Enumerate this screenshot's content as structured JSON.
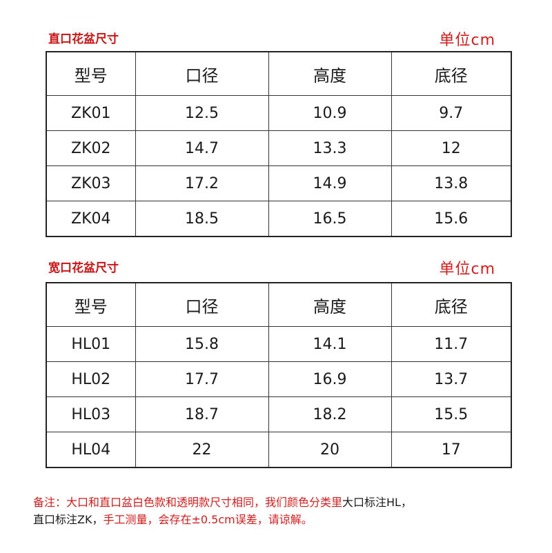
{
  "tables": [
    {
      "title": "直口花盆尺寸",
      "unit": "单位cm",
      "headers": [
        "型号",
        "口径",
        "高度",
        "底径"
      ],
      "rows": [
        [
          "ZK01",
          "12.5",
          "10.9",
          "9.7"
        ],
        [
          "ZK02",
          "14.7",
          "13.3",
          "12"
        ],
        [
          "ZK03",
          "17.2",
          "14.9",
          "13.8"
        ],
        [
          "ZK04",
          "18.5",
          "16.5",
          "15.6"
        ]
      ]
    },
    {
      "title": "宽口花盆尺寸",
      "unit": "单位cm",
      "headers": [
        "型号",
        "口径",
        "高度",
        "底径"
      ],
      "rows": [
        [
          "HL01",
          "15.8",
          "14.1",
          "11.7"
        ],
        [
          "HL02",
          "17.7",
          "16.9",
          "13.7"
        ],
        [
          "HL03",
          "18.7",
          "18.2",
          "15.5"
        ],
        [
          "HL04",
          "22",
          "20",
          "17"
        ]
      ]
    }
  ],
  "note": {
    "part1": "备注：大口和直口盆白色款和透明款尺寸相同，我们颜色分类里",
    "part2": "大口标注HL，",
    "part3": "直口标注ZK，",
    "part4": "手工测量，会存在±0.5cm误差，请谅解。"
  },
  "colors": {
    "accent_red": "#d21c1c",
    "border": "#333333"
  }
}
